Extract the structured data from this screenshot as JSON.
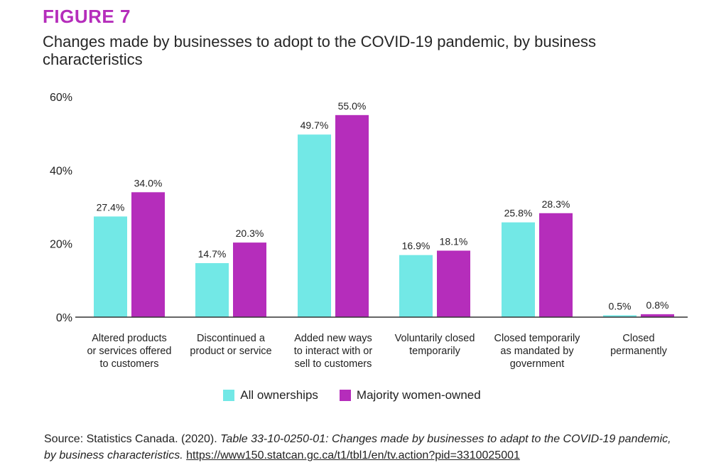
{
  "figure_label": "FIGURE 7",
  "title": "Changes made by businesses to adopt to the COVID-19 pandemic, by business characteristics",
  "source": {
    "prefix": "Source: Statistics Canada. (2020). ",
    "italic": "Table 33-10-0250-01: Changes made by businesses to adapt to the COVID-19 pandemic, by business characteristics.",
    "link": "https://www150.statcan.gc.ca/t1/tbl1/en/tv.action?pid=3310025001"
  },
  "chart_data": {
    "type": "bar",
    "categories": [
      [
        "Altered products",
        "or services offered",
        "to customers"
      ],
      [
        "Discontinued a",
        "product or service"
      ],
      [
        "Added new ways",
        "to interact with or",
        "sell to customers"
      ],
      [
        "Voluntarily closed",
        "temporarily"
      ],
      [
        "Closed temporarily",
        "as mandated by",
        "government"
      ],
      [
        "Closed",
        "permanently"
      ]
    ],
    "series": [
      {
        "name": "All ownerships",
        "color": "#72e8e6",
        "values": [
          27.4,
          14.7,
          49.7,
          16.9,
          25.8,
          0.5
        ]
      },
      {
        "name": "Majority women-owned",
        "color": "#b52dbb",
        "values": [
          34.0,
          20.3,
          55.0,
          18.1,
          28.3,
          0.8
        ]
      }
    ],
    "value_labels": [
      [
        "27.4%",
        "14.7%",
        "49.7%",
        "16.9%",
        "25.8%",
        "0.5%"
      ],
      [
        "34.0%",
        "20.3%",
        "55.0%",
        "18.1%",
        "28.3%",
        "0.8%"
      ]
    ],
    "y_ticks": [
      0,
      20,
      40,
      60
    ],
    "y_tick_labels": [
      "0%",
      "20%",
      "40%",
      "60%"
    ],
    "ylim": [
      0,
      60
    ],
    "grid": false,
    "legend_position": "bottom-center"
  }
}
